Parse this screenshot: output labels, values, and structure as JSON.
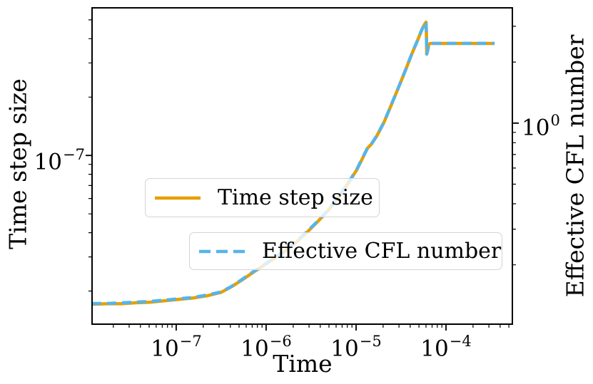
{
  "figure": {
    "xlabel": "Time",
    "ylabel_left": "Time step size",
    "ylabel_right": "Effective CFL number",
    "background": "#ffffff",
    "spine_color": "#000000"
  },
  "legend": {
    "items": [
      {
        "label": "Time step size",
        "color": "#E69F00",
        "style": "solid"
      },
      {
        "label": "Effective CFL number",
        "color": "#56B4E9",
        "style": "dashed"
      }
    ]
  },
  "chart_data": {
    "type": "line",
    "title": "",
    "xlabel": "Time",
    "grid": false,
    "legend_position": "center-left, two stacked boxes inside axes",
    "x_axis": {
      "scale": "log",
      "lim": [
        1.16e-08,
        0.000547
      ],
      "major_ticks": [
        {
          "value": 1e-07,
          "base": "10",
          "exp": "−7"
        },
        {
          "value": 1e-06,
          "base": "10",
          "exp": "−6"
        },
        {
          "value": 1e-05,
          "base": "10",
          "exp": "−5"
        },
        {
          "value": 0.0001,
          "base": "10",
          "exp": "−4"
        }
      ]
    },
    "left_axis": {
      "label": "Time step size",
      "scale": "log",
      "lim": [
        1.35e-08,
        5.77e-07
      ],
      "major_ticks": [
        {
          "value": 1e-07,
          "base": "10",
          "exp": "−7"
        }
      ]
    },
    "right_axis": {
      "label": "Effective CFL number",
      "scale": "log",
      "lim": [
        0.102,
        3.7
      ],
      "major_ticks": [
        {
          "value": 1,
          "base": "10",
          "exp": "0"
        }
      ]
    },
    "series": [
      {
        "name": "Time step size",
        "axis": "left",
        "color": "#E69F00",
        "style": "solid",
        "x": [
          1.16e-08,
          1.7e-08,
          2.45e-08,
          3.53e-08,
          5.09e-08,
          7.33e-08,
          1.06e-07,
          1.52e-07,
          2.2e-07,
          3.16e-07,
          4.16e-07,
          5.47e-07,
          7.2e-07,
          9.47e-07,
          1.25e-06,
          1.64e-06,
          2.15e-06,
          2.83e-06,
          3.73e-06,
          4.9e-06,
          6.45e-06,
          8.48e-06,
          1.02e-05,
          1.18e-05,
          1.34e-05,
          1.47e-05,
          1.7e-05,
          2.04e-05,
          2.45e-05,
          2.94e-05,
          3.53e-05,
          4.16e-05,
          4.82e-05,
          5.37e-05,
          5.78e-05,
          6e-05,
          6.05e-05,
          6.11e-05,
          6.28e-05,
          6.45e-05,
          6.69e-05,
          0.000144,
          0.000347
        ],
        "y": [
          1.71e-08,
          1.72e-08,
          1.72e-08,
          1.74e-08,
          1.75e-08,
          1.78e-08,
          1.81e-08,
          1.84e-08,
          1.89e-08,
          1.97e-08,
          2.11e-08,
          2.29e-08,
          2.5e-08,
          2.72e-08,
          2.96e-08,
          3.22e-08,
          3.56e-08,
          4.01e-08,
          4.55e-08,
          5.21e-08,
          6.12e-08,
          7.37e-08,
          8.44e-08,
          9.67e-08,
          1.09e-07,
          1.14e-07,
          1.26e-07,
          1.48e-07,
          1.81e-07,
          2.22e-07,
          2.74e-07,
          3.33e-07,
          3.91e-07,
          4.44e-07,
          4.75e-07,
          4.87e-07,
          4.33e-07,
          3.33e-07,
          3.5e-07,
          3.75e-07,
          3.78e-07,
          3.78e-07,
          3.78e-07
        ]
      },
      {
        "name": "Effective CFL number",
        "axis": "right",
        "color": "#56B4E9",
        "style": "dashed",
        "x": [
          1.16e-08,
          1.7e-08,
          2.45e-08,
          3.53e-08,
          5.09e-08,
          7.33e-08,
          1.06e-07,
          1.52e-07,
          2.2e-07,
          3.16e-07,
          4.16e-07,
          5.47e-07,
          7.2e-07,
          9.47e-07,
          1.25e-06,
          1.64e-06,
          2.15e-06,
          2.83e-06,
          3.73e-06,
          4.9e-06,
          6.45e-06,
          8.48e-06,
          1.02e-05,
          1.18e-05,
          1.34e-05,
          1.47e-05,
          1.7e-05,
          2.04e-05,
          2.45e-05,
          2.94e-05,
          3.53e-05,
          4.16e-05,
          4.82e-05,
          5.37e-05,
          5.78e-05,
          6e-05,
          6.05e-05,
          6.11e-05,
          6.28e-05,
          6.45e-05,
          6.69e-05,
          0.000144,
          0.000347
        ],
        "y": [
          0.129,
          0.129,
          0.13,
          0.131,
          0.132,
          0.134,
          0.136,
          0.138,
          0.142,
          0.147,
          0.157,
          0.17,
          0.185,
          0.2,
          0.217,
          0.236,
          0.26,
          0.291,
          0.328,
          0.373,
          0.435,
          0.52,
          0.591,
          0.673,
          0.754,
          0.785,
          0.865,
          1.008,
          1.224,
          1.486,
          1.818,
          2.19,
          2.553,
          2.881,
          3.075,
          3.15,
          2.813,
          2.19,
          2.299,
          2.452,
          2.472,
          2.472,
          2.472
        ]
      }
    ]
  }
}
